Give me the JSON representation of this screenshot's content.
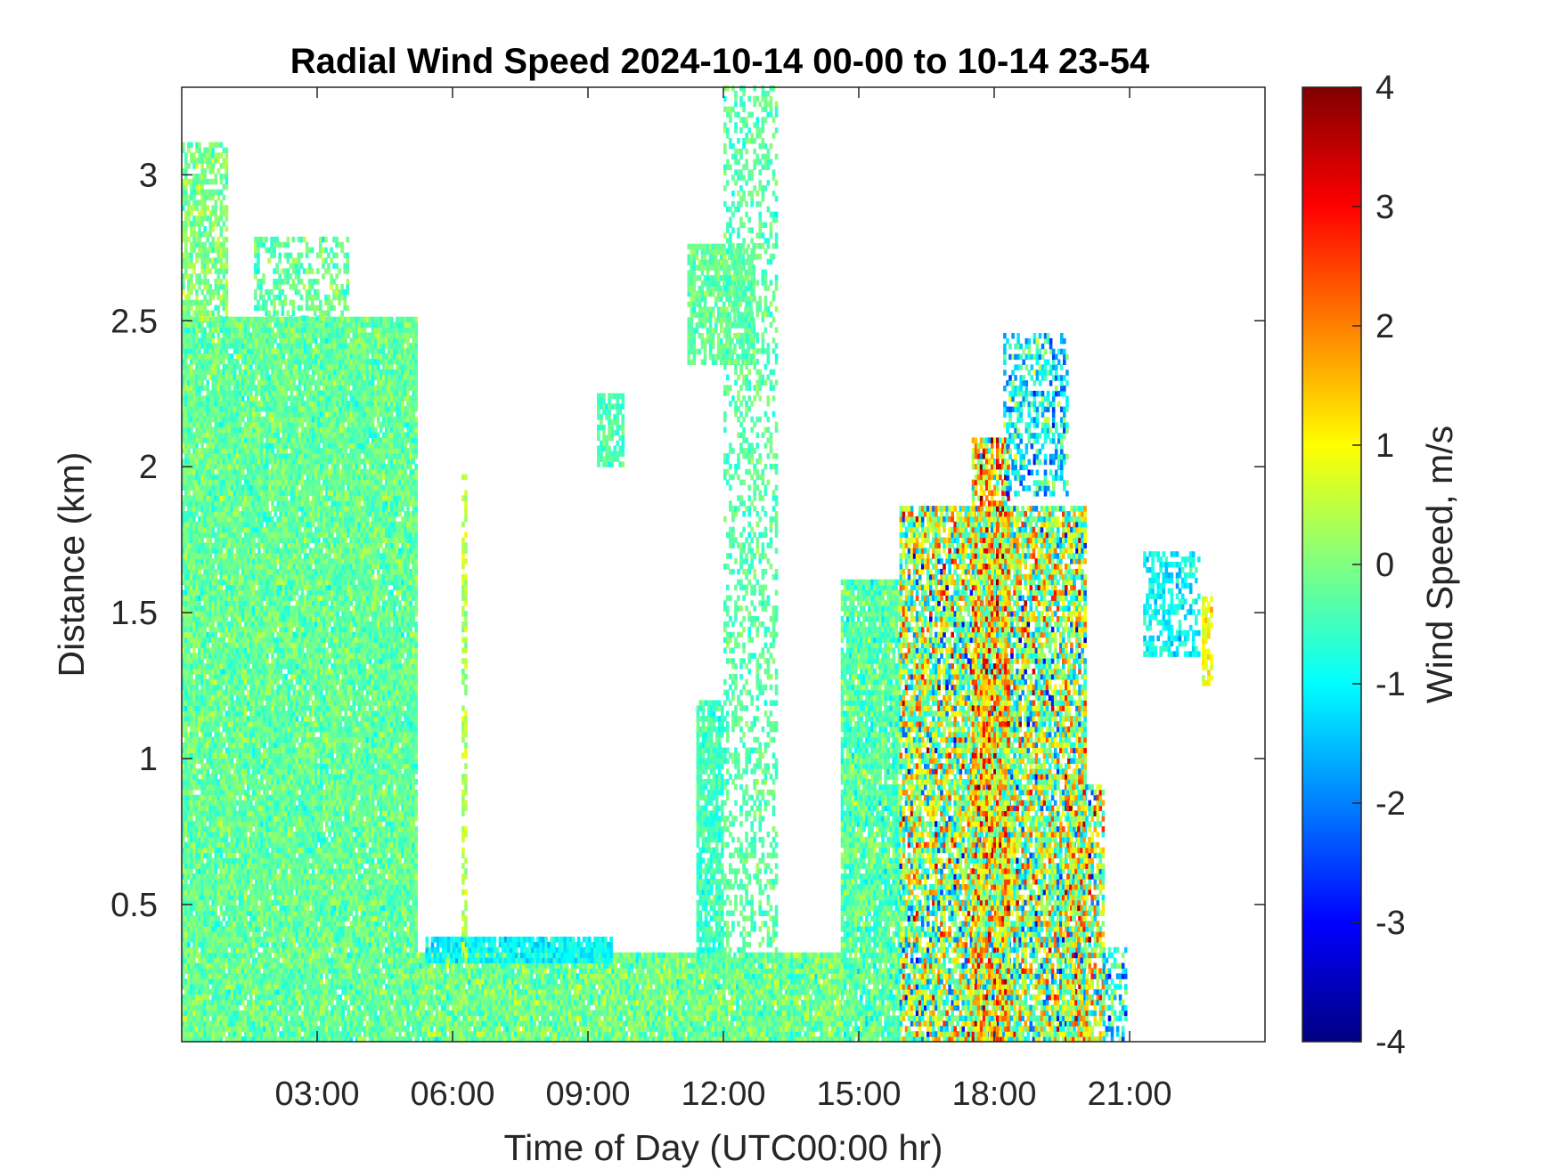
{
  "chart_data": {
    "type": "heatmap",
    "title": "Radial Wind Speed 2024-10-14 00-00 to 10-14 23-54",
    "xlabel": "Time of Day (UTC00:00 hr)",
    "ylabel": "Distance (km)",
    "colorbar_label": "Wind Speed, m/s",
    "x_unit": "hours",
    "xlim": [
      0,
      24
    ],
    "ylim": [
      0.03,
      3.3
    ],
    "clim": [
      -4,
      4
    ],
    "colormap": "jet",
    "x_ticks": [
      {
        "value": 3,
        "label": "03:00"
      },
      {
        "value": 6,
        "label": "06:00"
      },
      {
        "value": 9,
        "label": "09:00"
      },
      {
        "value": 12,
        "label": "12:00"
      },
      {
        "value": 15,
        "label": "15:00"
      },
      {
        "value": 18,
        "label": "18:00"
      },
      {
        "value": 21,
        "label": "21:00"
      }
    ],
    "y_ticks": [
      {
        "value": 0.5,
        "label": "0.5"
      },
      {
        "value": 1,
        "label": "1"
      },
      {
        "value": 1.5,
        "label": "1.5"
      },
      {
        "value": 2,
        "label": "2"
      },
      {
        "value": 2.5,
        "label": "2.5"
      },
      {
        "value": 3,
        "label": "3"
      }
    ],
    "colorbar_ticks": [
      {
        "value": 4,
        "label": "4"
      },
      {
        "value": 3,
        "label": "3"
      },
      {
        "value": 2,
        "label": "2"
      },
      {
        "value": 1,
        "label": "1"
      },
      {
        "value": 0,
        "label": "0"
      },
      {
        "value": -1,
        "label": "-1"
      },
      {
        "value": -2,
        "label": "-2"
      },
      {
        "value": -3,
        "label": "-3"
      },
      {
        "value": -4,
        "label": "-4"
      }
    ],
    "grid": false,
    "regions": [
      {
        "t0": 0.0,
        "t1": 5.2,
        "h0": 0.03,
        "h1": 2.5,
        "mean": -0.2,
        "spread": 0.5,
        "density": 0.96
      },
      {
        "t0": 0.0,
        "t1": 1.0,
        "h0": 2.5,
        "h1": 3.1,
        "mean": 0.0,
        "spread": 0.5,
        "density": 0.7
      },
      {
        "t0": 1.6,
        "t1": 3.7,
        "h0": 2.5,
        "h1": 2.78,
        "mean": -0.2,
        "spread": 0.5,
        "density": 0.45
      },
      {
        "t0": 5.2,
        "t1": 14.6,
        "h0": 0.03,
        "h1": 0.33,
        "mean": -0.1,
        "spread": 0.6,
        "density": 0.97
      },
      {
        "t0": 5.4,
        "t1": 9.5,
        "h0": 0.3,
        "h1": 0.38,
        "mean": -1.0,
        "spread": 0.4,
        "density": 0.9
      },
      {
        "t0": 6.2,
        "t1": 6.3,
        "h0": 0.3,
        "h1": 2.0,
        "mean": 0.4,
        "spread": 0.4,
        "density": 0.6
      },
      {
        "t0": 9.2,
        "t1": 9.8,
        "h0": 2.0,
        "h1": 2.25,
        "mean": -0.4,
        "spread": 0.4,
        "density": 0.7
      },
      {
        "t0": 11.2,
        "t1": 12.7,
        "h0": 2.35,
        "h1": 2.75,
        "mean": -0.2,
        "spread": 0.4,
        "density": 0.75
      },
      {
        "t0": 11.4,
        "t1": 12.0,
        "h0": 0.3,
        "h1": 1.2,
        "mean": -0.5,
        "spread": 0.4,
        "density": 0.85
      },
      {
        "t0": 12.0,
        "t1": 13.2,
        "h0": 0.3,
        "h1": 3.3,
        "mean": -0.3,
        "spread": 0.4,
        "density": 0.35
      },
      {
        "t0": 14.6,
        "t1": 15.9,
        "h0": 0.03,
        "h1": 1.6,
        "mean": -0.3,
        "spread": 0.6,
        "density": 0.92
      },
      {
        "t0": 15.9,
        "t1": 20.0,
        "h0": 0.03,
        "h1": 1.85,
        "mean": 0.2,
        "spread": 1.9,
        "density": 0.8
      },
      {
        "t0": 17.5,
        "t1": 18.3,
        "h0": 0.03,
        "h1": 2.1,
        "mean": 1.2,
        "spread": 1.8,
        "density": 0.75
      },
      {
        "t0": 18.2,
        "t1": 19.6,
        "h0": 1.9,
        "h1": 2.45,
        "mean": -1.0,
        "spread": 1.2,
        "density": 0.45
      },
      {
        "t0": 19.6,
        "t1": 20.4,
        "h0": 0.03,
        "h1": 0.9,
        "mean": 0.6,
        "spread": 2.0,
        "density": 0.7
      },
      {
        "t0": 20.4,
        "t1": 20.9,
        "h0": 0.03,
        "h1": 0.35,
        "mean": -1.0,
        "spread": 1.2,
        "density": 0.5
      },
      {
        "t0": 21.3,
        "t1": 22.5,
        "h0": 1.35,
        "h1": 1.7,
        "mean": -1.0,
        "spread": 0.5,
        "density": 0.5
      },
      {
        "t0": 22.6,
        "t1": 22.8,
        "h0": 1.25,
        "h1": 1.55,
        "mean": 1.0,
        "spread": 0.4,
        "density": 0.7
      }
    ]
  }
}
